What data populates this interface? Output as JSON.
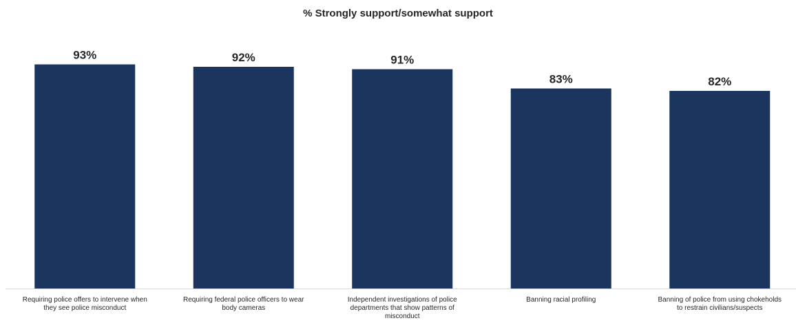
{
  "chart_data": {
    "type": "bar",
    "title": "% Strongly support/somewhat support",
    "categories": [
      "Requiring police offers to intervene when they see police misconduct",
      "Requiring federal police officers to wear body cameras",
      "Independent investigations of police departments that show patterns of misconduct",
      "Banning racial profiling",
      "Banning of police from using chokeholds to restrain civilians/suspects"
    ],
    "category_label_lines": [
      [
        "Requiring police offers to intervene when",
        "they see police misconduct"
      ],
      [
        "Requiring federal police officers to wear",
        "body cameras"
      ],
      [
        "Independent investigations of police",
        "departments that show patterns of",
        "misconduct"
      ],
      [
        "Banning racial profiling"
      ],
      [
        "Banning of police from using chokeholds",
        "to restrain civilians/suspects"
      ]
    ],
    "values": [
      93,
      92,
      91,
      83,
      82
    ],
    "data_labels": [
      "93%",
      "92%",
      "91%",
      "83%",
      "82%"
    ],
    "unit": "%",
    "ylim": [
      0,
      100
    ],
    "grid": false,
    "legend": "none",
    "colors": {
      "bar": "#1c355e",
      "axis": "#d9d9d9",
      "text": "#262626"
    }
  }
}
